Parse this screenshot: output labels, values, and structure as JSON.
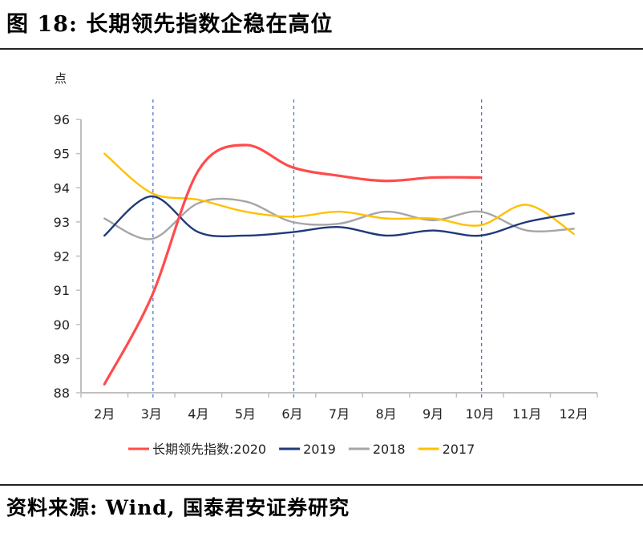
{
  "header": {
    "title": "图 18:  长期领先指数企稳在高位"
  },
  "footer": {
    "source": "资料来源:  Wind,  国泰君安证券研究"
  },
  "chart_data": {
    "type": "line",
    "title": "长期领先指数企稳在高位",
    "ylabel": "点",
    "xlabel": "",
    "ylim": [
      88,
      96
    ],
    "yticks": [
      88,
      89,
      90,
      91,
      92,
      93,
      94,
      95,
      96
    ],
    "categories": [
      "2月",
      "3月",
      "4月",
      "5月",
      "6月",
      "7月",
      "8月",
      "9月",
      "10月",
      "11月",
      "12月"
    ],
    "grid": false,
    "legend_position": "bottom",
    "reference_lines": [
      "3月",
      "6月",
      "10月"
    ],
    "series": [
      {
        "name": "长期领先指数:2020",
        "legend_label": "长期领先指数:2020",
        "color": "#FF4B4B",
        "values": [
          88.25,
          90.8,
          94.5,
          95.25,
          94.6,
          94.35,
          94.2,
          94.3,
          94.3,
          null,
          null
        ]
      },
      {
        "name": "2019",
        "legend_label": "2019",
        "color": "#1F3A7A",
        "values": [
          92.6,
          93.75,
          92.7,
          92.6,
          92.7,
          92.85,
          92.6,
          92.75,
          92.6,
          93.0,
          93.25
        ]
      },
      {
        "name": "2018",
        "legend_label": "2018",
        "color": "#A6A6A6",
        "values": [
          93.1,
          92.5,
          93.55,
          93.6,
          93.0,
          92.95,
          93.3,
          93.05,
          93.3,
          92.75,
          92.8
        ]
      },
      {
        "name": "2017",
        "legend_label": "2017",
        "color": "#FFC000",
        "values": [
          95.0,
          93.85,
          93.65,
          93.3,
          93.15,
          93.3,
          93.1,
          93.1,
          92.9,
          93.5,
          92.65
        ]
      }
    ]
  }
}
